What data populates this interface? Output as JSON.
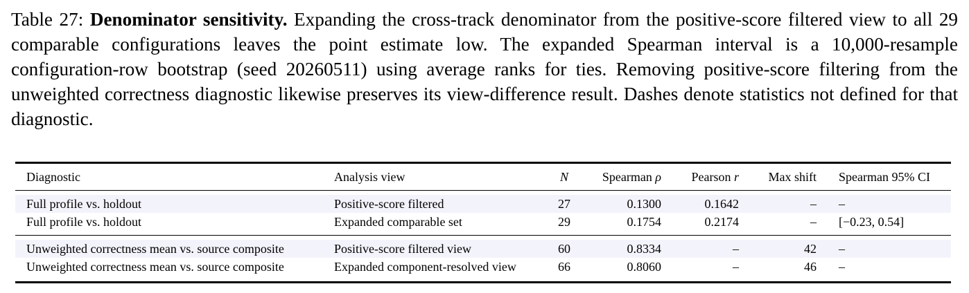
{
  "caption": {
    "label": "Table 27:",
    "title": "Denominator sensitivity.",
    "body": "Expanding the cross-track denominator from the positive-score filtered view to all 29 comparable configurations leaves the point estimate low. The expanded Spearman interval is a 10,000-resample configuration-row bootstrap (seed 20260511) using average ranks for ties. Removing positive-score filtering from the unweighted correctness diagnostic likewise preserves its view-difference result. Dashes denote statistics not defined for that diagnostic."
  },
  "table": {
    "headers": {
      "diagnostic": "Diagnostic",
      "view": "Analysis view",
      "n": "N",
      "spearman_prefix": "Spearman ",
      "spearman_symbol": "ρ",
      "pearson_prefix": "Pearson ",
      "pearson_symbol": "r",
      "max_shift": "Max shift",
      "ci": "Spearman 95% CI"
    },
    "group1": [
      {
        "diagnostic": "Full profile vs. holdout",
        "view": "Positive-score filtered",
        "n": "27",
        "spearman": "0.1300",
        "pearson": "0.1642",
        "max_shift": "–",
        "ci": "–"
      },
      {
        "diagnostic": "Full profile vs. holdout",
        "view": "Expanded comparable set",
        "n": "29",
        "spearman": "0.1754",
        "pearson": "0.2174",
        "max_shift": "–",
        "ci": "[−0.23, 0.54]"
      }
    ],
    "group2": [
      {
        "diagnostic": "Unweighted correctness mean vs. source composite",
        "view": "Positive-score filtered view",
        "n": "60",
        "spearman": "0.8334",
        "pearson": "–",
        "max_shift": "42",
        "ci": "–"
      },
      {
        "diagnostic": "Unweighted correctness mean vs. source composite",
        "view": "Expanded component-resolved view",
        "n": "66",
        "spearman": "0.8060",
        "pearson": "–",
        "max_shift": "46",
        "ci": "–"
      }
    ]
  }
}
